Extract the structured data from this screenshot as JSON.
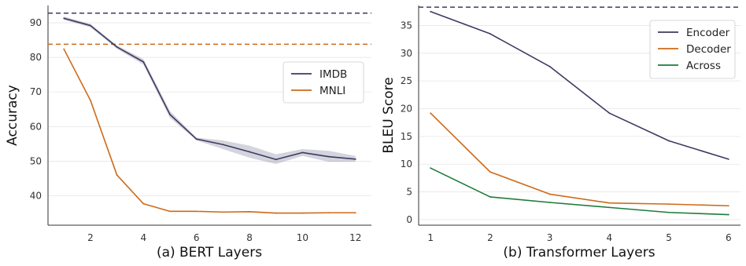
{
  "chart_data": [
    {
      "type": "line",
      "caption": "(a) BERT Layers",
      "xlabel": "",
      "ylabel": "Accuracy",
      "xlim": [
        0.4,
        12.6
      ],
      "ylim": [
        31.5,
        95
      ],
      "xticks": [
        2,
        4,
        6,
        8,
        10,
        12
      ],
      "yticks": [
        40,
        50,
        60,
        70,
        80,
        90
      ],
      "grid": "horizontal",
      "legend_position": "center-right",
      "series": [
        {
          "name": "IMDB",
          "color": "#3d3a63",
          "x": [
            1,
            2,
            3,
            4,
            5,
            6,
            7,
            8,
            9,
            10,
            11,
            12
          ],
          "values": [
            91.3,
            89.2,
            83.0,
            78.7,
            63.5,
            56.4,
            54.8,
            52.7,
            50.5,
            52.5,
            51.3,
            50.6
          ],
          "band_low": [
            90.8,
            88.7,
            82.5,
            77.9,
            62.5,
            56.0,
            53.5,
            51.0,
            49.2,
            51.5,
            49.8,
            49.8
          ],
          "band_high": [
            91.8,
            89.7,
            83.5,
            79.5,
            64.5,
            56.8,
            56.0,
            54.5,
            52.0,
            53.5,
            53.0,
            51.5
          ]
        },
        {
          "name": "MNLI",
          "color": "#cd6a1a",
          "x": [
            1,
            2,
            3,
            4,
            5,
            6,
            7,
            8,
            9,
            10,
            11,
            12
          ],
          "values": [
            82.4,
            67.6,
            46.0,
            37.7,
            35.5,
            35.5,
            35.3,
            35.4,
            35.0,
            35.0,
            35.1,
            35.1
          ]
        }
      ],
      "reference_lines": [
        {
          "y": 92.8,
          "color": "#3d3a63",
          "style": "dashed"
        },
        {
          "y": 83.8,
          "color": "#cd6a1a",
          "style": "dashed"
        }
      ]
    },
    {
      "type": "line",
      "caption": "(b) Transformer Layers",
      "xlabel": "",
      "ylabel": "BLEU Score",
      "xlim": [
        0.8,
        6.2
      ],
      "ylim": [
        -1,
        38.6
      ],
      "xticks": [
        1,
        2,
        3,
        4,
        5,
        6
      ],
      "yticks": [
        0,
        5,
        10,
        15,
        20,
        25,
        30,
        35
      ],
      "grid": "horizontal",
      "legend_position": "top-right",
      "series": [
        {
          "name": "Encoder",
          "color": "#3d3a63",
          "x": [
            1,
            2,
            3,
            4,
            5,
            6
          ],
          "values": [
            37.5,
            33.5,
            27.6,
            19.2,
            14.2,
            10.9
          ]
        },
        {
          "name": "Decoder",
          "color": "#cd6a1a",
          "x": [
            1,
            2,
            3,
            4,
            5,
            6
          ],
          "values": [
            19.2,
            8.6,
            4.6,
            3.0,
            2.8,
            2.5
          ]
        },
        {
          "name": "Across",
          "color": "#1e7b3b",
          "x": [
            1,
            2,
            3,
            4,
            5,
            6
          ],
          "values": [
            9.3,
            4.1,
            3.1,
            2.2,
            1.3,
            0.9
          ]
        }
      ],
      "reference_lines": [
        {
          "y": 38.3,
          "color": "#3d3a63",
          "style": "dashed"
        }
      ]
    }
  ]
}
